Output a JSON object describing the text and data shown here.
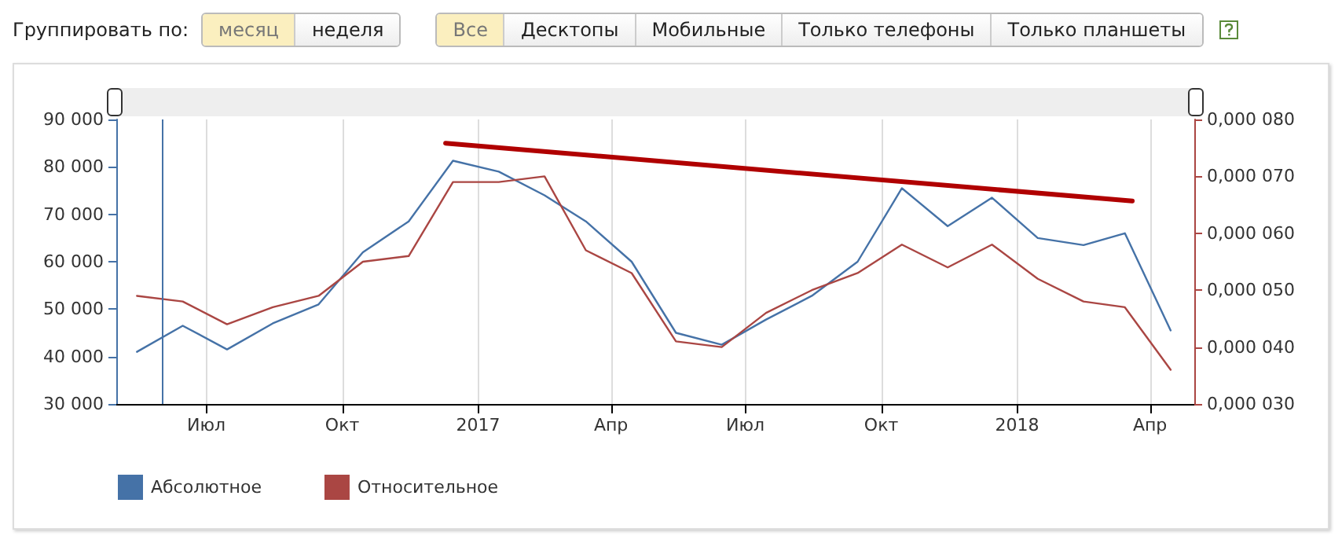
{
  "chart_data": {
    "type": "line",
    "annotations": [
      "Группировать по:",
      "месяц",
      "неделя",
      "Все",
      "Десктопы",
      "Мобильные",
      "Только телефоны",
      "Только планшеты"
    ],
    "x": [
      "2016-05-15",
      "2016-06-15",
      "2016-07-15",
      "2016-08-15",
      "2016-09-15",
      "2016-10-15",
      "2016-11-15",
      "2016-12-15",
      "2017-01-15",
      "2017-02-15",
      "2017-03-15",
      "2017-04-15",
      "2017-05-15",
      "2017-06-15",
      "2017-07-15",
      "2017-08-15",
      "2017-09-15",
      "2017-10-15",
      "2017-11-15",
      "2017-12-15",
      "2018-01-15",
      "2018-02-15",
      "2018-03-15",
      "2018-04-15"
    ],
    "series": [
      {
        "name": "Абсолютное",
        "color": "#4572a7",
        "values": [
          41000,
          46500,
          41500,
          47000,
          51000,
          62000,
          68500,
          81300,
          79000,
          74000,
          68500,
          60000,
          45000,
          42500,
          47800,
          52800,
          60000,
          75500,
          67500,
          73500,
          65000,
          63500,
          66000,
          45500
        ]
      },
      {
        "name": "Относительное",
        "color": "#aa4643",
        "axis": "y2",
        "values": [
          4.9e-05,
          4.8e-05,
          4.4e-05,
          4.7e-05,
          4.9e-05,
          5.5e-05,
          5.6e-05,
          6.9e-05,
          6.9e-05,
          7e-05,
          5.7e-05,
          5.3e-05,
          4.1e-05,
          4e-05,
          4.6e-05,
          5e-05,
          5.3e-05,
          5.8e-05,
          5.4e-05,
          5.8e-05,
          5.2e-05,
          4.8e-05,
          4.7e-05,
          3.6e-05
        ]
      },
      {
        "type": "line",
        "color": "#b00000",
        "x": [
          "2016-12-10",
          "2018-03-20"
        ],
        "values": [
          85000,
          72800
        ]
      }
    ],
    "xlim": [
      "2016-05-01",
      "2018-05-01"
    ],
    "xticks": [
      {
        "value": "2016-07-01",
        "label": "Июл"
      },
      {
        "value": "2016-10-01",
        "label": "Окт"
      },
      {
        "value": "2017-01-01",
        "label": "2017"
      },
      {
        "value": "2017-04-01",
        "label": "Апр"
      },
      {
        "value": "2017-07-01",
        "label": "Июл"
      },
      {
        "value": "2017-10-01",
        "label": "Окт"
      },
      {
        "value": "2018-01-01",
        "label": "2018"
      },
      {
        "value": "2018-04-01",
        "label": "Апр"
      }
    ],
    "ylim": [
      30000,
      90000
    ],
    "yticks": [
      {
        "value": 30000,
        "label": "30 000"
      },
      {
        "value": 40000,
        "label": "40 000"
      },
      {
        "value": 50000,
        "label": "50 000"
      },
      {
        "value": 60000,
        "label": "60 000"
      },
      {
        "value": 70000,
        "label": "70 000"
      },
      {
        "value": 80000,
        "label": "80 000"
      },
      {
        "value": 90000,
        "label": "90 000"
      }
    ],
    "y2lim": [
      3e-05,
      8e-05
    ],
    "y2ticks": [
      {
        "value": 3e-05,
        "label": "0,000 030"
      },
      {
        "value": 4e-05,
        "label": "0,000 040"
      },
      {
        "value": 5e-05,
        "label": "0,000 050"
      },
      {
        "value": 6e-05,
        "label": "0,000 060"
      },
      {
        "value": 7e-05,
        "label": "0,000 070"
      },
      {
        "value": 8e-05,
        "label": "0,000 080"
      }
    ],
    "ref_lines": [
      {
        "axis": "x",
        "value": "2016-06-01",
        "color": "#4572a7"
      }
    ],
    "grid": "x",
    "legend": "bottom left",
    "marker": "none",
    "line_style": "solid"
  }
}
